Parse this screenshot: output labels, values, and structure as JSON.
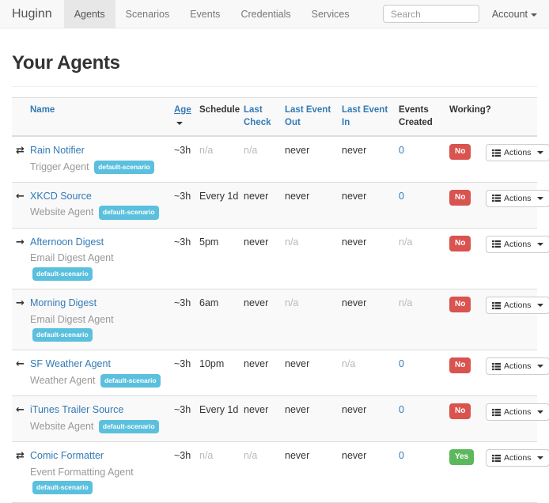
{
  "navbar": {
    "brand": "Huginn",
    "items": [
      {
        "label": "Agents",
        "active": true
      },
      {
        "label": "Scenarios",
        "active": false
      },
      {
        "label": "Events",
        "active": false
      },
      {
        "label": "Credentials",
        "active": false
      },
      {
        "label": "Services",
        "active": false
      }
    ],
    "search_placeholder": "Search",
    "account_label": "Account"
  },
  "page": {
    "title": "Your Agents"
  },
  "table": {
    "headers": [
      {
        "label": "Name",
        "kind": "link",
        "key": "name"
      },
      {
        "label": "Age",
        "kind": "link",
        "key": "age",
        "sorted": "desc"
      },
      {
        "label": "Schedule",
        "kind": "plain",
        "key": "schedule"
      },
      {
        "label": "Last Check",
        "kind": "link",
        "key": "last-check"
      },
      {
        "label": "Last Event Out",
        "kind": "link",
        "key": "last-event-out"
      },
      {
        "label": "Last Event In",
        "kind": "link",
        "key": "last-event-in"
      },
      {
        "label": "Events Created",
        "kind": "plain",
        "key": "events-created"
      },
      {
        "label": "Working?",
        "kind": "plain",
        "key": "working"
      }
    ],
    "actions_label": "Actions",
    "rows": [
      {
        "icon": "exchange",
        "name": "Rain Notifier",
        "type": "Trigger Agent",
        "scenario": "default-scenario",
        "age": "~3h",
        "schedule": {
          "text": "n/a",
          "kind": "muted"
        },
        "last_check": {
          "text": "n/a",
          "kind": "muted"
        },
        "last_event_out": {
          "text": "never",
          "kind": "normal"
        },
        "last_event_in": {
          "text": "never",
          "kind": "normal"
        },
        "events_created": {
          "text": "0",
          "kind": "link"
        },
        "working": {
          "text": "No",
          "color": "red"
        }
      },
      {
        "icon": "arrow-left",
        "name": "XKCD Source",
        "type": "Website Agent",
        "scenario": "default-scenario",
        "age": "~3h",
        "schedule": {
          "text": "Every 1d",
          "kind": "normal"
        },
        "last_check": {
          "text": "never",
          "kind": "normal"
        },
        "last_event_out": {
          "text": "never",
          "kind": "normal"
        },
        "last_event_in": {
          "text": "never",
          "kind": "normal"
        },
        "events_created": {
          "text": "0",
          "kind": "link"
        },
        "working": {
          "text": "No",
          "color": "red"
        }
      },
      {
        "icon": "arrow-right",
        "name": "Afternoon Digest",
        "type": "Email Digest Agent",
        "scenario": "default-scenario",
        "age": "~3h",
        "schedule": {
          "text": "5pm",
          "kind": "normal"
        },
        "last_check": {
          "text": "never",
          "kind": "normal"
        },
        "last_event_out": {
          "text": "n/a",
          "kind": "muted"
        },
        "last_event_in": {
          "text": "never",
          "kind": "normal"
        },
        "events_created": {
          "text": "n/a",
          "kind": "muted"
        },
        "working": {
          "text": "No",
          "color": "red"
        }
      },
      {
        "icon": "arrow-right",
        "name": "Morning Digest",
        "type": "Email Digest Agent",
        "scenario": "default-scenario",
        "age": "~3h",
        "schedule": {
          "text": "6am",
          "kind": "normal"
        },
        "last_check": {
          "text": "never",
          "kind": "normal"
        },
        "last_event_out": {
          "text": "n/a",
          "kind": "muted"
        },
        "last_event_in": {
          "text": "never",
          "kind": "normal"
        },
        "events_created": {
          "text": "n/a",
          "kind": "muted"
        },
        "working": {
          "text": "No",
          "color": "red"
        }
      },
      {
        "icon": "arrow-left",
        "name": "SF Weather Agent",
        "type": "Weather Agent",
        "scenario": "default-scenario",
        "age": "~3h",
        "schedule": {
          "text": "10pm",
          "kind": "normal"
        },
        "last_check": {
          "text": "never",
          "kind": "normal"
        },
        "last_event_out": {
          "text": "never",
          "kind": "normal"
        },
        "last_event_in": {
          "text": "n/a",
          "kind": "muted"
        },
        "events_created": {
          "text": "0",
          "kind": "link"
        },
        "working": {
          "text": "No",
          "color": "red"
        }
      },
      {
        "icon": "arrow-left",
        "name": "iTunes Trailer Source",
        "type": "Website Agent",
        "scenario": "default-scenario",
        "age": "~3h",
        "schedule": {
          "text": "Every 1d",
          "kind": "normal"
        },
        "last_check": {
          "text": "never",
          "kind": "normal"
        },
        "last_event_out": {
          "text": "never",
          "kind": "normal"
        },
        "last_event_in": {
          "text": "never",
          "kind": "normal"
        },
        "events_created": {
          "text": "0",
          "kind": "link"
        },
        "working": {
          "text": "No",
          "color": "red"
        }
      },
      {
        "icon": "exchange",
        "name": "Comic Formatter",
        "type": "Event Formatting Agent",
        "scenario": "default-scenario",
        "age": "~3h",
        "schedule": {
          "text": "n/a",
          "kind": "muted"
        },
        "last_check": {
          "text": "n/a",
          "kind": "muted"
        },
        "last_event_out": {
          "text": "never",
          "kind": "normal"
        },
        "last_event_in": {
          "text": "never",
          "kind": "normal"
        },
        "events_created": {
          "text": "0",
          "kind": "link"
        },
        "working": {
          "text": "Yes",
          "color": "green"
        }
      }
    ]
  },
  "colors": {
    "link": "#337ab7",
    "navbar_bg": "#f8f8f8",
    "nav_active_bg": "#e7e7e7",
    "stripe": "#f9f9f9",
    "badge_info": "#5bc0de",
    "label_danger": "#d9534f",
    "label_success": "#5cb85c",
    "table_border": "#dddddd"
  }
}
